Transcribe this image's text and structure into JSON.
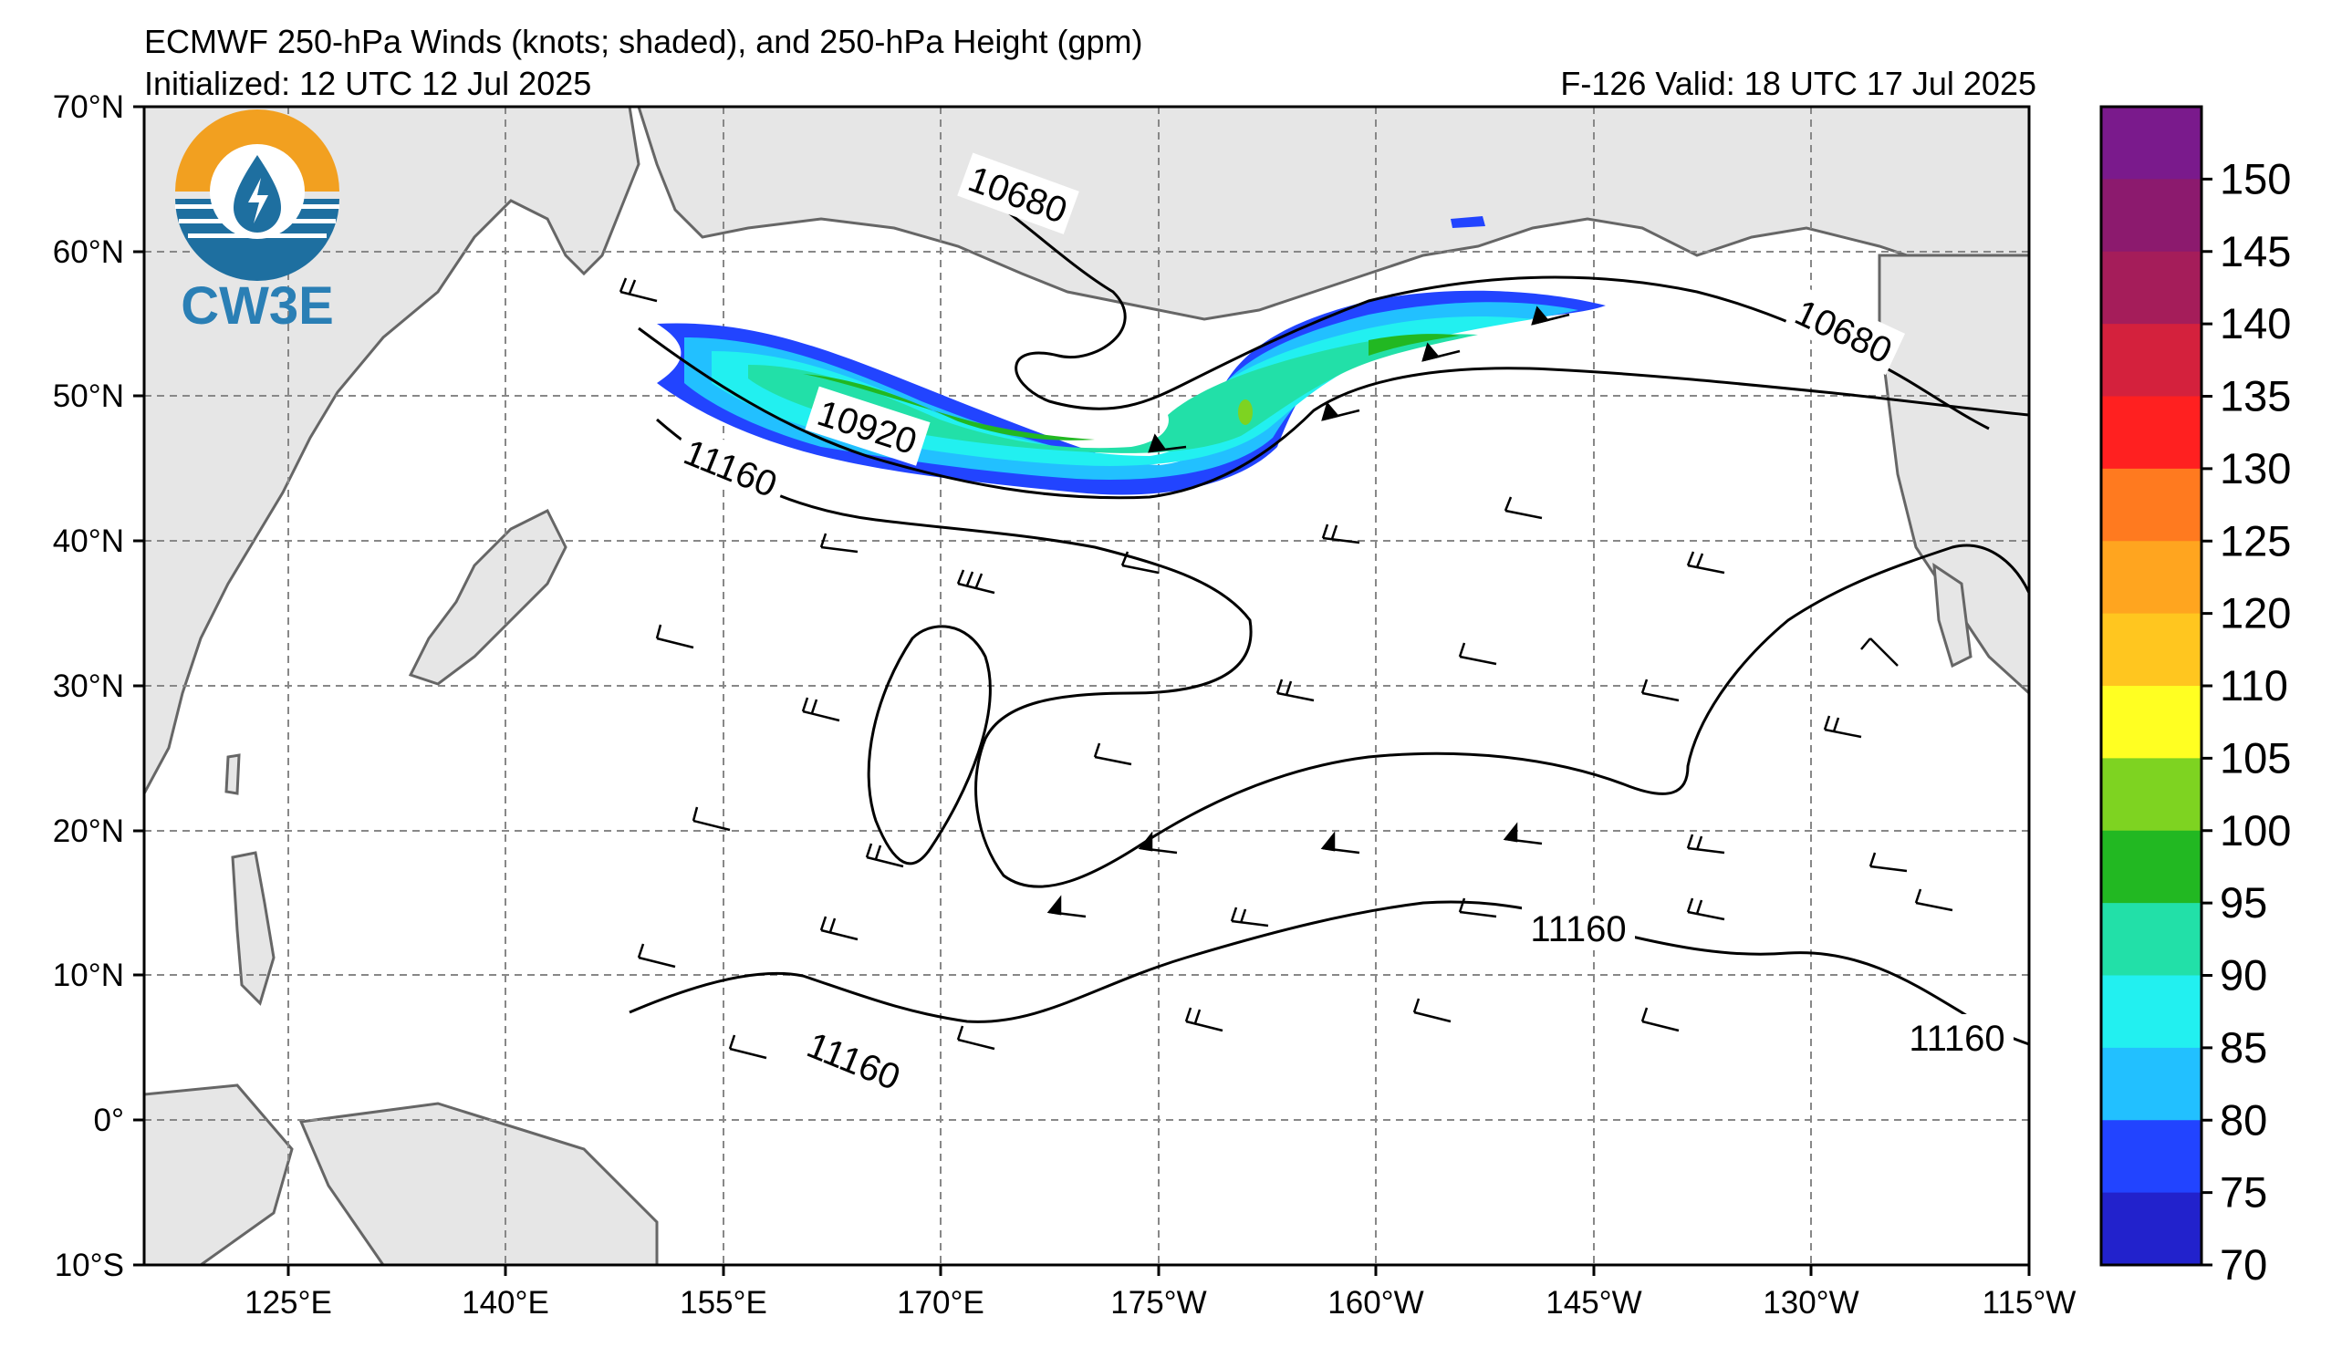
{
  "header": {
    "title": "ECMWF 250-hPa Winds (knots; shaded), and 250-hPa Height (gpm)",
    "initialized": "Initialized: 12 UTC 12 Jul 2025",
    "valid": "F-126  Valid: 18 UTC 17 Jul 2025"
  },
  "logo": {
    "text": "CW3E",
    "icon": "water-drop-lightning-icon"
  },
  "axes": {
    "lat_labels": [
      "70°N",
      "60°N",
      "50°N",
      "40°N",
      "30°N",
      "20°N",
      "10°N",
      "0°",
      "10°S"
    ],
    "lon_labels": [
      "125°E",
      "140°E",
      "155°E",
      "170°E",
      "175°W",
      "160°W",
      "145°W",
      "130°W",
      "115°W"
    ]
  },
  "contour_labels": [
    "10680",
    "10680",
    "10920",
    "11160",
    "11160",
    "11160",
    "11160"
  ],
  "colorbar": {
    "labels": [
      "150",
      "145",
      "140",
      "135",
      "130",
      "125",
      "120",
      "110",
      "105",
      "100",
      "95",
      "90",
      "85",
      "80",
      "75",
      "70"
    ],
    "colors": [
      "#7a1a8c",
      "#8c1a6e",
      "#a51d5a",
      "#d4213d",
      "#ff2020",
      "#ff7a1f",
      "#ffa51f",
      "#ffc61f",
      "#ffff22",
      "#7ed321",
      "#22b822",
      "#22e0a8",
      "#22f0f0",
      "#22c0ff",
      "#2244ff",
      "#2222cc"
    ]
  },
  "colors": {
    "land": "#e6e6e6",
    "ocean": "#ffffff",
    "coast": "#666666",
    "grid": "#888888",
    "contour": "#000000"
  }
}
